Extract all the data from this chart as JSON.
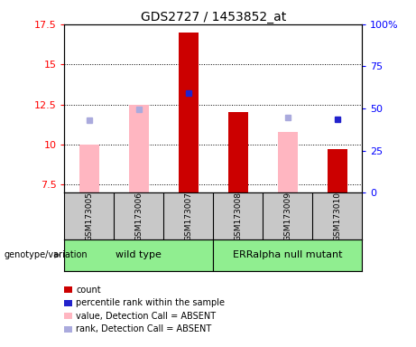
{
  "title": "GDS2727 / 1453852_at",
  "samples": [
    "GSM173005",
    "GSM173006",
    "GSM173007",
    "GSM173008",
    "GSM173009",
    "GSM173010"
  ],
  "group1_name": "wild type",
  "group2_name": "ERRalpha null mutant",
  "group_color": "#90ee90",
  "ylim_left": [
    7.0,
    17.5
  ],
  "ylim_right": [
    0,
    100
  ],
  "yticks_left": [
    7.5,
    10.0,
    12.5,
    15.0,
    17.5
  ],
  "yticks_right": [
    0,
    25,
    50,
    75,
    100
  ],
  "ytick_labels_left": [
    "7.5",
    "10",
    "12.5",
    "15",
    "17.5"
  ],
  "ytick_labels_right": [
    "0",
    "25",
    "50",
    "75",
    "100%"
  ],
  "bar_color_present": "#cc0000",
  "bar_color_absent": "#ffb6c1",
  "dot_color_blue": "#2222cc",
  "dot_color_lightblue": "#aaaadd",
  "count_values": [
    null,
    null,
    17.0,
    12.0,
    null,
    9.7
  ],
  "rank_values": [
    null,
    null,
    13.2,
    null,
    null,
    11.6
  ],
  "absent_value_bars": [
    10.0,
    12.5,
    null,
    null,
    10.8,
    null
  ],
  "absent_rank_dots": [
    11.5,
    12.2,
    null,
    null,
    11.7,
    null
  ],
  "background_label": "#c8c8c8",
  "legend_items": [
    {
      "color": "#cc0000",
      "label": "count"
    },
    {
      "color": "#2222cc",
      "label": "percentile rank within the sample"
    },
    {
      "color": "#ffb6c1",
      "label": "value, Detection Call = ABSENT"
    },
    {
      "color": "#aaaadd",
      "label": "rank, Detection Call = ABSENT"
    }
  ]
}
